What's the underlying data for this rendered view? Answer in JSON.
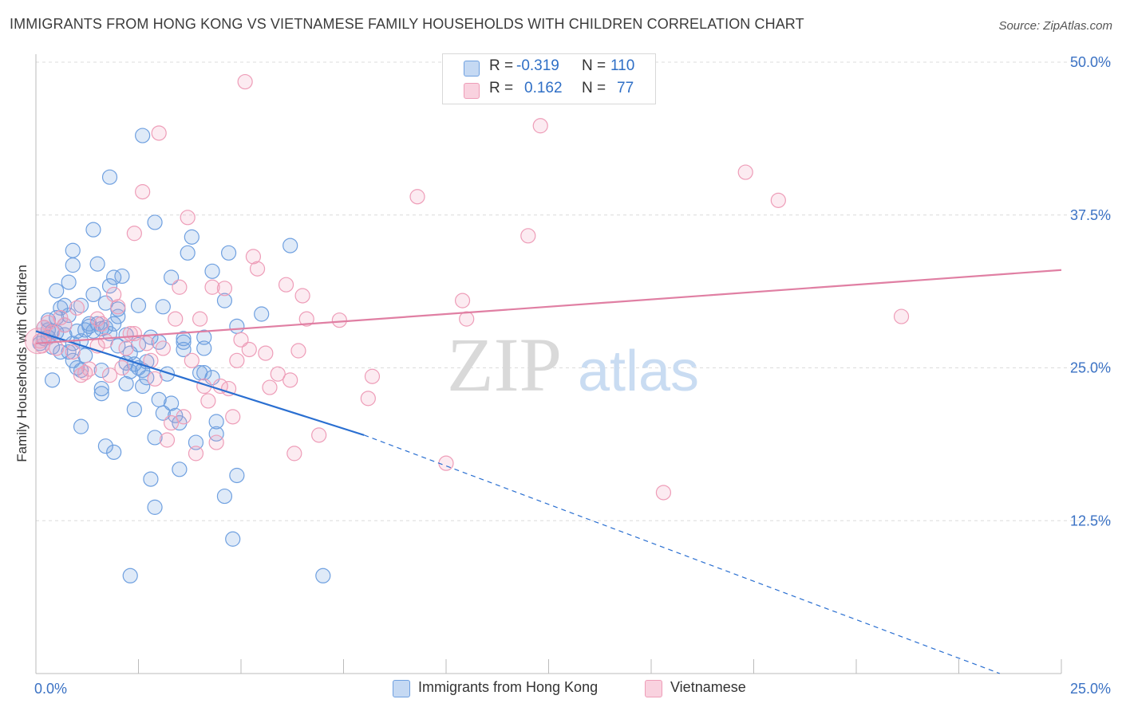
{
  "title": "IMMIGRANTS FROM HONG KONG VS VIETNAMESE FAMILY HOUSEHOLDS WITH CHILDREN CORRELATION CHART",
  "source": "Source: ZipAtlas.com",
  "watermark": {
    "zip": "ZIP",
    "atlas": "atlas"
  },
  "stats": [
    {
      "r_label": "R =",
      "r_value": "-0.319",
      "n_label": "N =",
      "n_value": "110",
      "color": "#6fa0e0"
    },
    {
      "r_label": "R =",
      "r_value": "0.162",
      "n_label": "N =",
      "n_value": "77",
      "color": "#ee9db8"
    }
  ],
  "chart_data": {
    "type": "scatter",
    "title": "IMMIGRANTS FROM HONG KONG VS VIETNAMESE FAMILY HOUSEHOLDS WITH CHILDREN CORRELATION CHART",
    "xlabel": "",
    "ylabel": "Family Households with Children",
    "xlim": [
      0,
      25
    ],
    "ylim": [
      0,
      50
    ],
    "x_tick_labels": [
      "0.0%",
      "25.0%"
    ],
    "y_ticks": [
      12.5,
      25.0,
      37.5,
      50.0
    ],
    "y_tick_labels": [
      "12.5%",
      "25.0%",
      "37.5%",
      "50.0%"
    ],
    "grid": true,
    "legend_position": "bottom-center",
    "series": [
      {
        "name": "Immigrants from Hong Kong",
        "color": "#6fa0e0",
        "line_color": "#2a6fd1",
        "trend": {
          "x0": 0.0,
          "y0": 28.0,
          "x1": 8.0,
          "y1": 19.5,
          "dash_x1": 23.5,
          "dash_y1": 0.0
        },
        "points": [
          [
            0.1,
            27.0
          ],
          [
            0.2,
            28.3
          ],
          [
            0.2,
            27.4
          ],
          [
            0.3,
            28.1
          ],
          [
            0.3,
            27.5
          ],
          [
            0.4,
            28.0
          ],
          [
            0.4,
            24.0
          ],
          [
            0.5,
            31.3
          ],
          [
            0.5,
            27.9
          ],
          [
            0.6,
            29.9
          ],
          [
            0.7,
            30.1
          ],
          [
            0.7,
            28.5
          ],
          [
            0.7,
            27.7
          ],
          [
            0.8,
            32.0
          ],
          [
            0.8,
            26.3
          ],
          [
            0.9,
            34.6
          ],
          [
            0.9,
            33.4
          ],
          [
            0.9,
            25.6
          ],
          [
            1.0,
            28.0
          ],
          [
            1.0,
            25.0
          ],
          [
            1.1,
            30.1
          ],
          [
            1.1,
            24.8
          ],
          [
            1.1,
            20.2
          ],
          [
            1.1,
            27.2
          ],
          [
            1.2,
            28.1
          ],
          [
            1.3,
            28.4
          ],
          [
            1.4,
            31.0
          ],
          [
            1.4,
            28.0
          ],
          [
            1.4,
            36.3
          ],
          [
            1.5,
            33.5
          ],
          [
            1.5,
            28.6
          ],
          [
            1.6,
            28.2
          ],
          [
            1.6,
            24.8
          ],
          [
            1.7,
            30.3
          ],
          [
            1.7,
            28.3
          ],
          [
            1.6,
            23.3
          ],
          [
            1.7,
            18.6
          ],
          [
            1.8,
            31.7
          ],
          [
            1.8,
            40.6
          ],
          [
            1.9,
            32.4
          ],
          [
            1.9,
            18.1
          ],
          [
            1.9,
            28.6
          ],
          [
            2.0,
            29.8
          ],
          [
            2.0,
            29.2
          ],
          [
            2.1,
            32.5
          ],
          [
            2.2,
            27.7
          ],
          [
            2.2,
            23.7
          ],
          [
            2.2,
            25.4
          ],
          [
            2.3,
            26.2
          ],
          [
            2.3,
            8.0
          ],
          [
            2.4,
            21.6
          ],
          [
            2.4,
            25.3
          ],
          [
            2.5,
            30.1
          ],
          [
            2.5,
            26.9
          ],
          [
            2.5,
            25.0
          ],
          [
            2.6,
            44.0
          ],
          [
            2.6,
            24.8
          ],
          [
            2.7,
            24.2
          ],
          [
            2.6,
            23.5
          ],
          [
            2.8,
            27.5
          ],
          [
            2.8,
            15.9
          ],
          [
            2.9,
            36.9
          ],
          [
            2.9,
            13.6
          ],
          [
            2.9,
            19.3
          ],
          [
            3.0,
            27.1
          ],
          [
            3.0,
            22.4
          ],
          [
            3.1,
            30.0
          ],
          [
            3.1,
            21.3
          ],
          [
            3.2,
            24.5
          ],
          [
            3.3,
            22.1
          ],
          [
            3.3,
            32.4
          ],
          [
            3.4,
            21.1
          ],
          [
            3.5,
            16.7
          ],
          [
            3.6,
            27.1
          ],
          [
            3.6,
            26.5
          ],
          [
            3.6,
            27.4
          ],
          [
            3.7,
            34.4
          ],
          [
            3.8,
            35.7
          ],
          [
            3.9,
            18.9
          ],
          [
            4.0,
            24.6
          ],
          [
            4.1,
            27.5
          ],
          [
            4.1,
            26.6
          ],
          [
            4.1,
            24.6
          ],
          [
            4.3,
            32.9
          ],
          [
            4.3,
            24.2
          ],
          [
            4.4,
            20.6
          ],
          [
            4.4,
            19.6
          ],
          [
            4.6,
            30.5
          ],
          [
            4.7,
            34.4
          ],
          [
            4.6,
            14.5
          ],
          [
            4.8,
            11.0
          ],
          [
            4.9,
            28.4
          ],
          [
            4.9,
            16.2
          ],
          [
            5.5,
            29.4
          ],
          [
            6.2,
            35.0
          ],
          [
            7.0,
            8.0
          ],
          [
            0.6,
            26.3
          ],
          [
            1.3,
            28.6
          ],
          [
            0.8,
            29.3
          ],
          [
            2.0,
            26.8
          ],
          [
            0.3,
            28.9
          ],
          [
            2.3,
            24.7
          ],
          [
            0.9,
            27.0
          ],
          [
            1.6,
            22.9
          ],
          [
            0.5,
            29.1
          ],
          [
            3.5,
            20.5
          ],
          [
            1.8,
            27.8
          ],
          [
            2.7,
            25.5
          ],
          [
            0.4,
            26.7
          ],
          [
            1.2,
            26.0
          ]
        ]
      },
      {
        "name": "Vietnamese",
        "color": "#ee9db8",
        "line_color": "#e07fa3",
        "trend": {
          "x0": 0.0,
          "y0": 27.0,
          "x1": 25.0,
          "y1": 33.0
        },
        "points": [
          [
            0.1,
            27.2
          ],
          [
            0.2,
            28.3
          ],
          [
            0.3,
            28.7
          ],
          [
            0.4,
            27.9
          ],
          [
            0.5,
            26.6
          ],
          [
            0.6,
            29.1
          ],
          [
            0.7,
            28.5
          ],
          [
            0.9,
            26.3
          ],
          [
            1.0,
            29.9
          ],
          [
            1.1,
            24.4
          ],
          [
            1.2,
            24.6
          ],
          [
            1.3,
            24.9
          ],
          [
            1.5,
            26.8
          ],
          [
            1.5,
            29.0
          ],
          [
            1.6,
            28.6
          ],
          [
            1.7,
            27.2
          ],
          [
            1.8,
            24.4
          ],
          [
            1.9,
            31.0
          ],
          [
            2.0,
            30.0
          ],
          [
            2.1,
            25.0
          ],
          [
            2.2,
            26.6
          ],
          [
            2.3,
            27.8
          ],
          [
            2.4,
            36.0
          ],
          [
            2.4,
            27.8
          ],
          [
            2.6,
            39.4
          ],
          [
            2.7,
            27.0
          ],
          [
            2.8,
            25.6
          ],
          [
            2.9,
            24.1
          ],
          [
            3.0,
            44.2
          ],
          [
            3.1,
            26.6
          ],
          [
            3.2,
            19.1
          ],
          [
            3.3,
            20.5
          ],
          [
            3.4,
            29.0
          ],
          [
            3.5,
            31.6
          ],
          [
            3.6,
            21.0
          ],
          [
            3.7,
            37.3
          ],
          [
            3.8,
            25.6
          ],
          [
            3.9,
            18.0
          ],
          [
            4.0,
            29.0
          ],
          [
            4.1,
            23.5
          ],
          [
            4.2,
            22.3
          ],
          [
            4.3,
            31.6
          ],
          [
            4.4,
            18.9
          ],
          [
            4.5,
            23.5
          ],
          [
            4.6,
            31.5
          ],
          [
            4.7,
            23.3
          ],
          [
            4.8,
            21.0
          ],
          [
            4.9,
            25.6
          ],
          [
            5.0,
            27.3
          ],
          [
            5.2,
            26.5
          ],
          [
            5.3,
            34.1
          ],
          [
            5.4,
            33.1
          ],
          [
            5.6,
            26.2
          ],
          [
            5.7,
            23.4
          ],
          [
            5.9,
            24.5
          ],
          [
            6.1,
            31.8
          ],
          [
            6.2,
            24.0
          ],
          [
            6.3,
            18.0
          ],
          [
            6.4,
            26.4
          ],
          [
            6.5,
            30.9
          ],
          [
            6.6,
            29.0
          ],
          [
            6.9,
            19.5
          ],
          [
            7.4,
            28.9
          ],
          [
            8.1,
            22.5
          ],
          [
            8.2,
            24.3
          ],
          [
            9.3,
            39.0
          ],
          [
            10.0,
            17.2
          ],
          [
            10.4,
            30.5
          ],
          [
            10.5,
            29.0
          ],
          [
            12.0,
            35.8
          ],
          [
            12.3,
            44.8
          ],
          [
            15.3,
            14.8
          ],
          [
            17.3,
            41.0
          ],
          [
            18.1,
            38.7
          ],
          [
            21.1,
            29.2
          ],
          [
            5.1,
            48.4
          ],
          [
            0.15,
            26.8
          ]
        ]
      }
    ]
  },
  "legend": [
    {
      "label": "Immigrants from Hong Kong",
      "color": "#6fa0e0"
    },
    {
      "label": "Vietnamese",
      "color": "#ee9db8"
    }
  ]
}
